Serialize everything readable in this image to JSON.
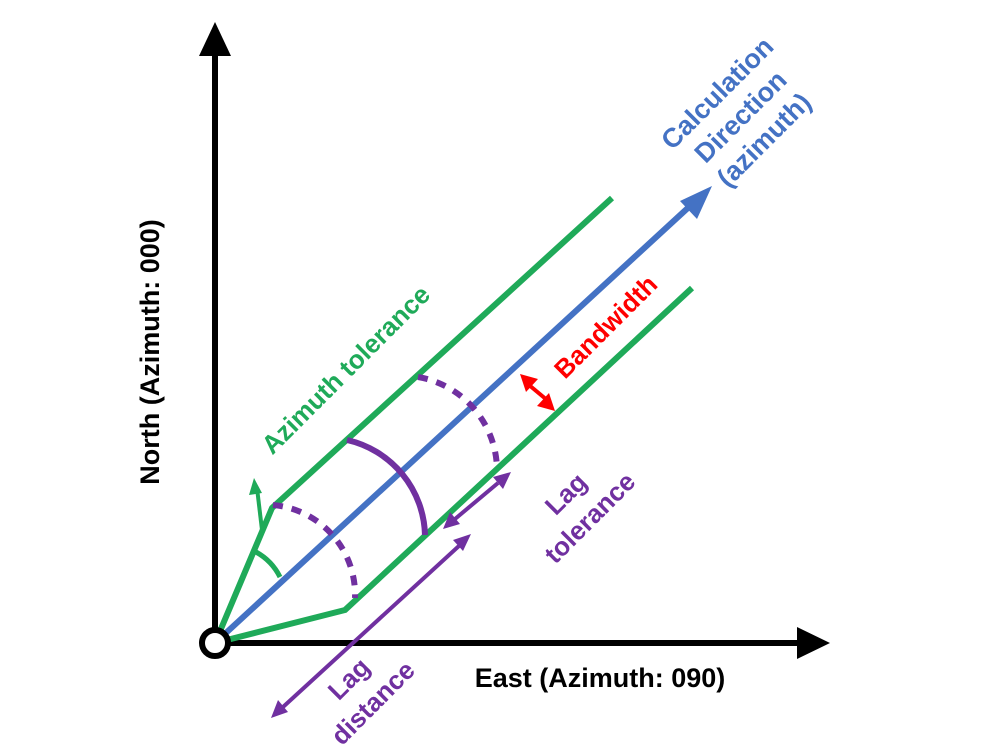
{
  "labels": {
    "north_axis": "North (Azimuth: 000)",
    "east_axis": "East (Azimuth: 090)",
    "calc_line1": "Calculation",
    "calc_line2": "Direction",
    "calc_line3": "(azimuth)",
    "bandwidth": "Bandwidth",
    "azimuth_tolerance": "Azimuth tolerance",
    "lag_tolerance_line1": "Lag",
    "lag_tolerance_line2": "tolerance",
    "lag_distance_line1": "Lag",
    "lag_distance_line2": "distance"
  },
  "colors": {
    "axes": "#000000",
    "direction": "#4472C4",
    "tolerance_lines": "#1FAA59",
    "lag": "#7030A0",
    "bandwidth": "#FF0000"
  }
}
